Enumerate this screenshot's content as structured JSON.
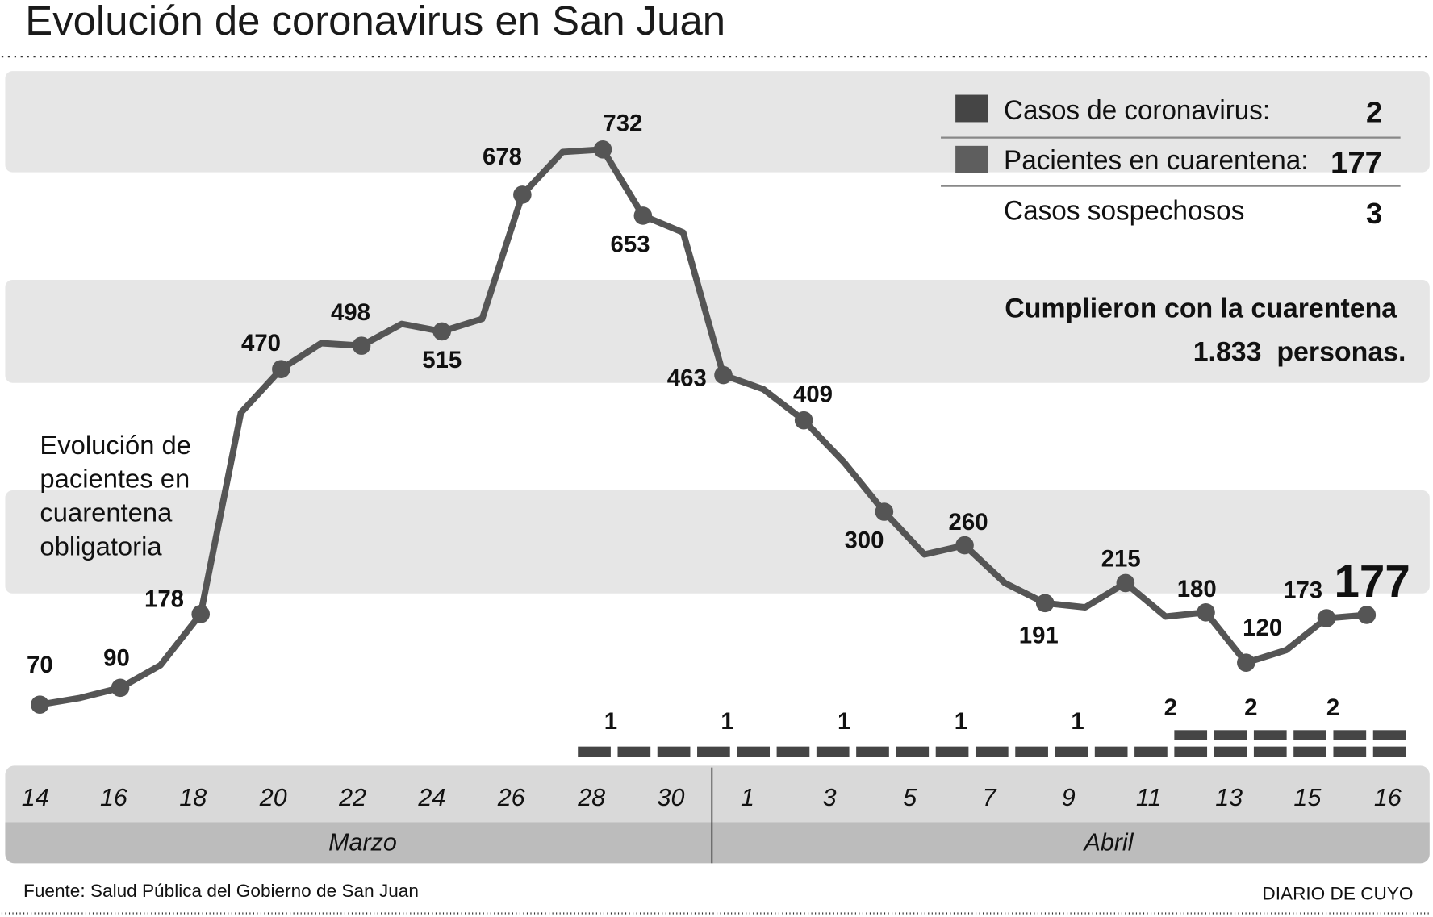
{
  "title": "Evolución de coronavirus en San Juan",
  "legend": {
    "items": [
      {
        "label": "Casos de coronavirus:",
        "value": "2",
        "color": "#454545"
      },
      {
        "label": "Pacientes en cuarentena:",
        "value": "177",
        "color": "#5e5e5e"
      },
      {
        "label": "Casos sospechosos",
        "value": "3"
      }
    ]
  },
  "quarantine_note": {
    "line1": "Cumplieron con la cuarentena",
    "line2": "1.833  personas."
  },
  "side_note": [
    "Evolución de",
    "pacientes en",
    "cuarentena",
    "obligatoria"
  ],
  "footer": {
    "source": "Fuente: Salud Pública del Gobierno de San Juan",
    "brand": "DIARIO DE CUYO"
  },
  "chart_data": {
    "type": "line",
    "title": "Evolución de pacientes en cuarentena obligatoria",
    "series": [
      {
        "name": "Pacientes en cuarentena",
        "color": "#555555",
        "values": [
          70,
          78,
          90,
          117,
          178,
          418,
          470,
          501,
          498,
          524,
          515,
          530,
          678,
          729,
          732,
          653,
          633,
          463,
          446,
          409,
          359,
          300,
          249,
          260,
          215,
          191,
          186,
          215,
          175,
          180,
          120,
          135,
          173,
          177
        ],
        "labels": {
          "0": "70",
          "2": "90",
          "4": "178",
          "6": "470",
          "8": "498",
          "10": "515",
          "12": "678",
          "14": "732",
          "15": "653",
          "17": "463",
          "19": "409",
          "21": "300",
          "23": "260",
          "25": "191",
          "27": "215",
          "29": "180",
          "30": "120",
          "32": "173",
          "33": "177"
        }
      }
    ],
    "cases": {
      "name": "Casos de coronavirus",
      "color": "#454545",
      "daily_level": [
        0,
        0,
        0,
        0,
        0,
        0,
        0,
        0,
        0,
        0,
        0,
        0,
        0,
        1,
        1,
        1,
        1,
        1,
        1,
        1,
        1,
        1,
        1,
        1,
        1,
        1,
        1,
        1,
        2,
        2,
        2,
        2,
        2,
        2
      ],
      "labels": [
        "1",
        "1",
        "1",
        "1",
        "1",
        "2",
        "2",
        "2"
      ]
    },
    "x_ticks": [
      "14",
      "16",
      "18",
      "20",
      "22",
      "24",
      "26",
      "28",
      "30",
      "1",
      "3",
      "5",
      "7",
      "9",
      "11",
      "13",
      "15",
      "16"
    ],
    "months": [
      "Marzo",
      "Abril"
    ],
    "ylim": [
      0,
      800
    ],
    "grid": false
  }
}
